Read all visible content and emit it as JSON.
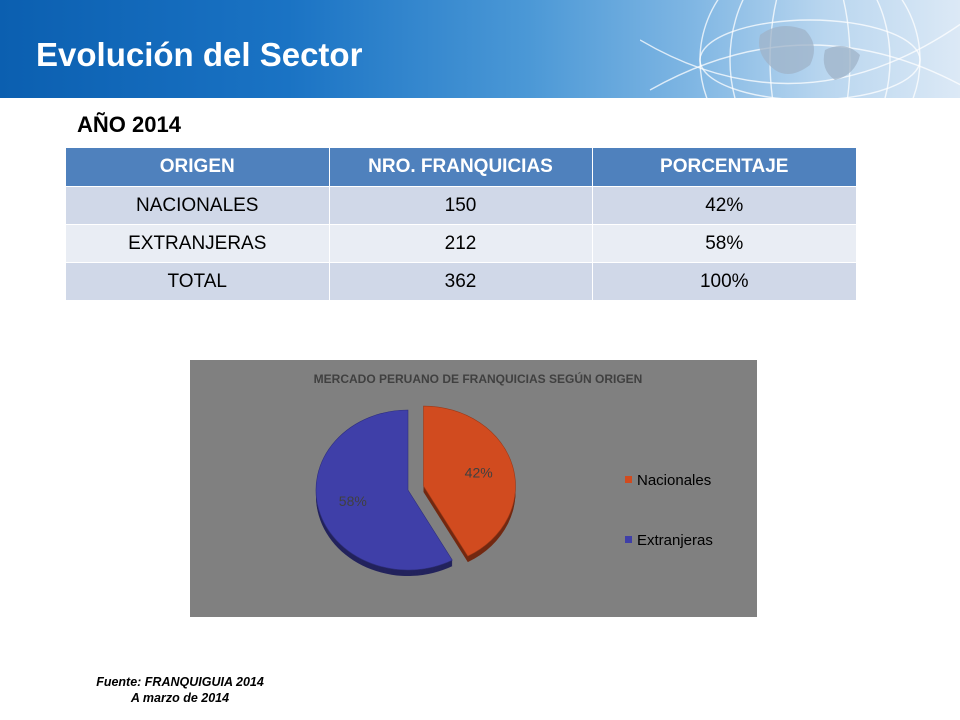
{
  "header": {
    "title": "Evolución del Sector"
  },
  "year_label": "AÑO 2014",
  "table": {
    "headers": [
      "ORIGEN",
      "NRO. FRANQUICIAS",
      "PORCENTAJE"
    ],
    "rows": [
      [
        "NACIONALES",
        "150",
        "42%"
      ],
      [
        "EXTRANJERAS",
        "212",
        "58%"
      ],
      [
        "TOTAL",
        "362",
        "100%"
      ]
    ]
  },
  "chart_data": {
    "type": "pie",
    "title": "MERCADO PERUANO DE FRANQUICIAS SEGÚN ORIGEN",
    "labels": [
      "Nacionales",
      "Extranjeras"
    ],
    "values": [
      42,
      58
    ],
    "data_labels": [
      "42%",
      "58%"
    ],
    "colors": [
      "#d14b1f",
      "#3f3fa8"
    ],
    "exploded": true,
    "legend_position": "right"
  },
  "footer": {
    "source": "Fuente: FRANQUIGUIA 2014",
    "date": "A marzo de 2014"
  }
}
